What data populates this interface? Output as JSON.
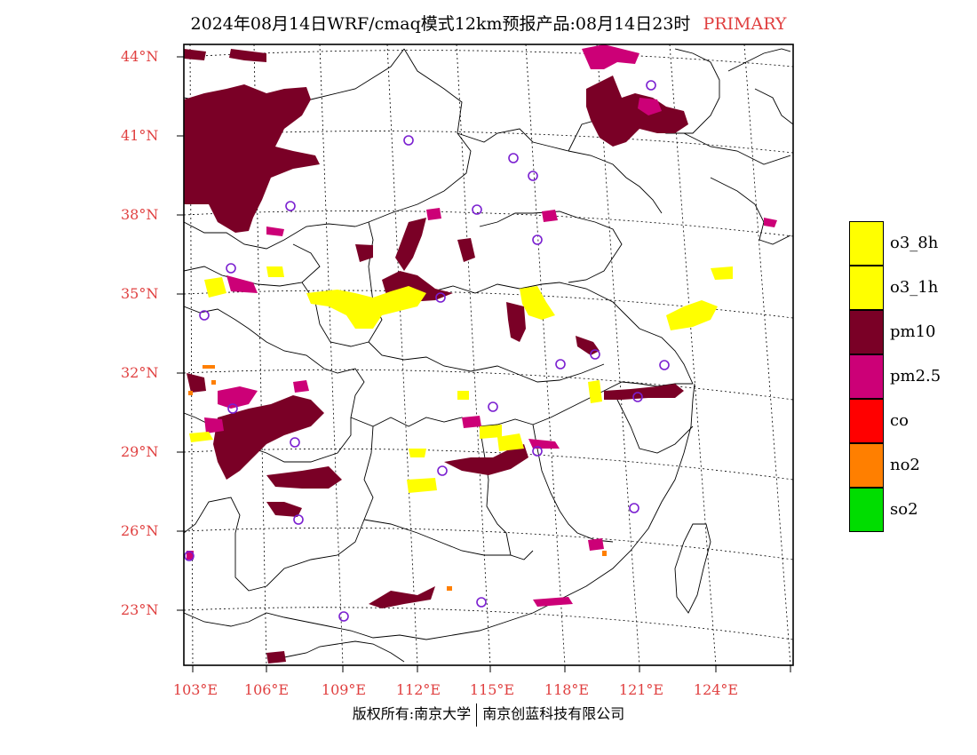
{
  "title": {
    "main": "2024年08月14日WRF/cmaq模式12km预报产品:08月14日23时",
    "tag": "PRIMARY"
  },
  "axes": {
    "lat_labels": [
      "44°N",
      "41°N",
      "38°N",
      "35°N",
      "32°N",
      "29°N",
      "26°N",
      "23°N"
    ],
    "lon_labels": [
      "103°E",
      "106°E",
      "109°E",
      "112°E",
      "115°E",
      "118°E",
      "121°E",
      "124°E"
    ],
    "label_color": "#e04040"
  },
  "legend": [
    {
      "label": "o3_8h",
      "color": "#ffff00"
    },
    {
      "label": "o3_1h",
      "color": "#ffff00"
    },
    {
      "label": "pm10",
      "color": "#7a0026"
    },
    {
      "label": "pm2.5",
      "color": "#cc0077"
    },
    {
      "label": "co",
      "color": "#ff0000"
    },
    {
      "label": "no2",
      "color": "#ff7f00"
    },
    {
      "label": "so2",
      "color": "#00dd00"
    }
  ],
  "footer": {
    "left": "版权所有:南京大学",
    "right": "南京创蓝科技有限公司"
  }
}
